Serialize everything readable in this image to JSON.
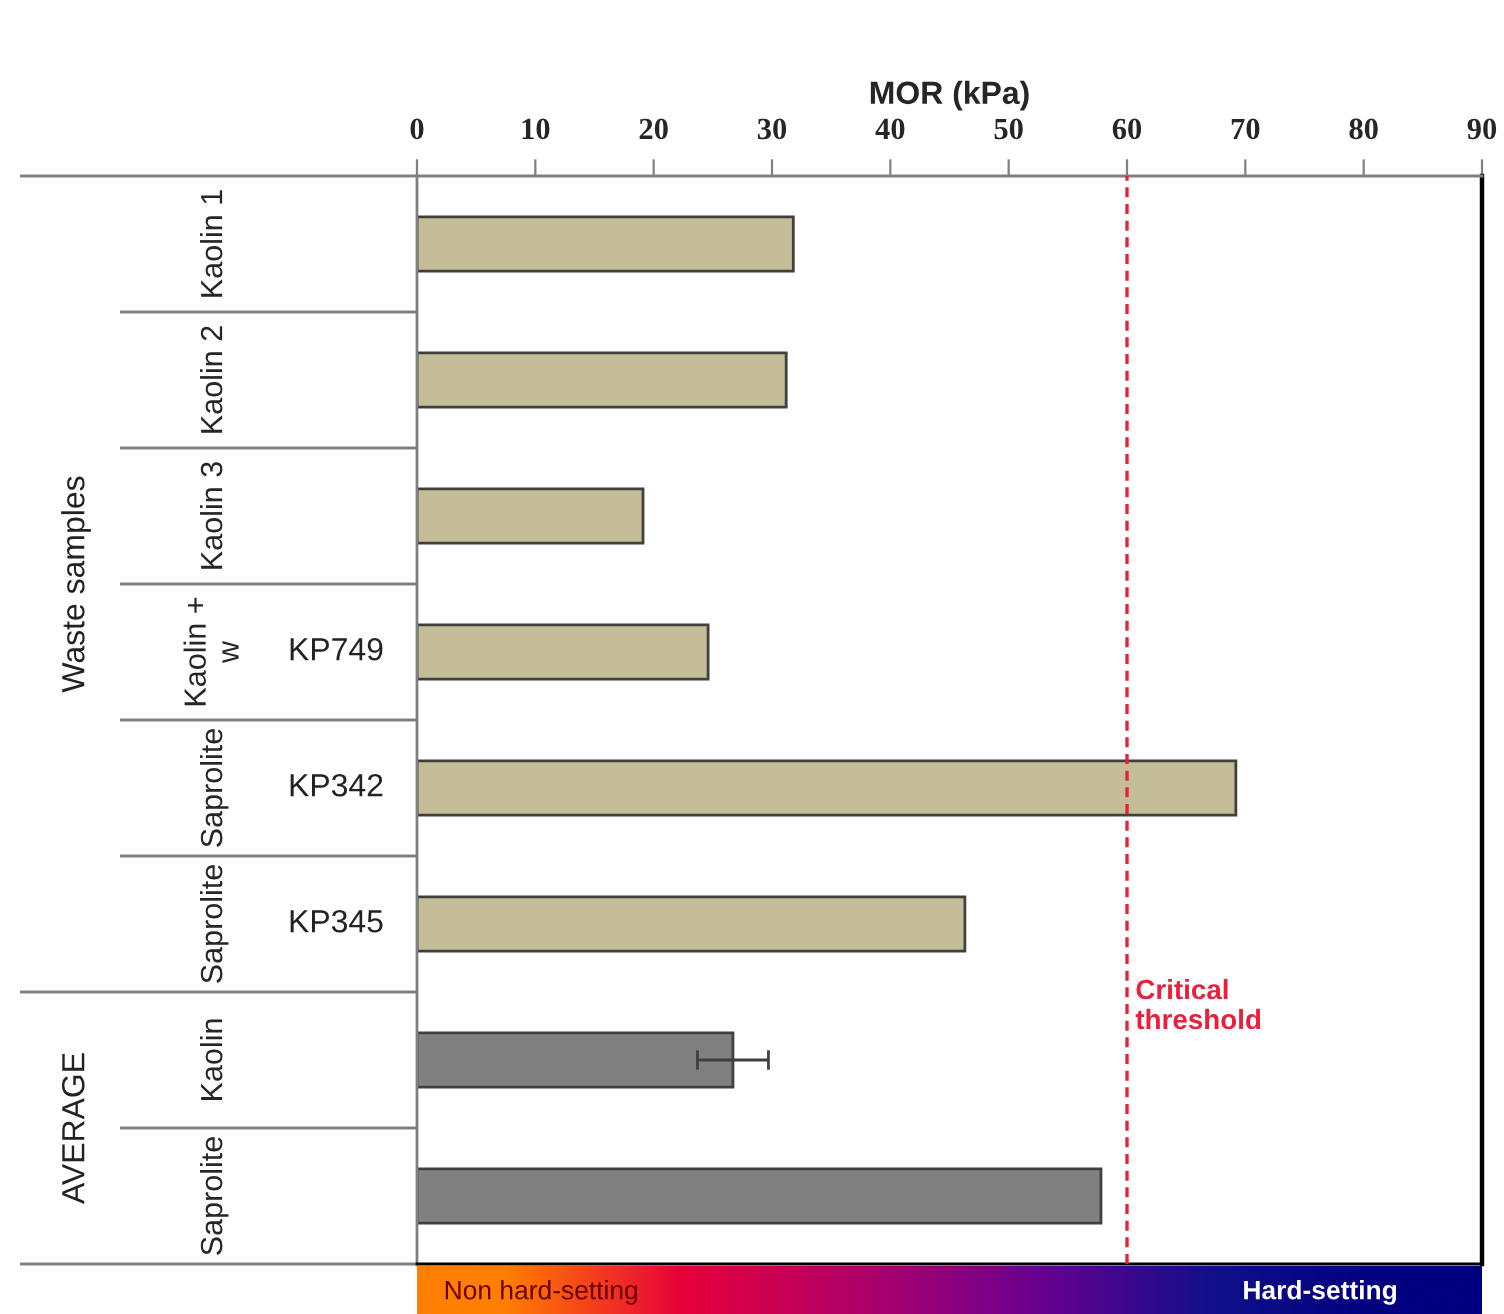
{
  "chart_data": {
    "type": "bar",
    "orientation": "horizontal",
    "xlabel": "MOR (kPa)",
    "categories": [
      "Kaolin 1",
      "Kaolin 2",
      "Kaolin 3",
      "Kaolin +\nw",
      "Saprolite",
      "Saprolite",
      "Kaolin",
      "Saprolite"
    ],
    "values": [
      31.8,
      31.2,
      19.1,
      24.6,
      69.2,
      46.3,
      26.7,
      57.8
    ],
    "colors": [
      "#c4bd97",
      "#c4bd97",
      "#c4bd97",
      "#c4bd97",
      "#c4bd97",
      "#c4bd97",
      "#808080",
      "#808080"
    ],
    "errors": [
      null,
      null,
      null,
      null,
      null,
      null,
      3,
      null
    ],
    "xlim": [
      0,
      90
    ],
    "xticks": [
      0,
      10,
      20,
      30,
      40,
      50,
      60,
      70,
      80,
      90
    ],
    "ref_lines": [
      {
        "axis": "x",
        "value": 60,
        "label": "Critical\nthreshold",
        "color": "#e8203c",
        "line_style": "dashed"
      }
    ],
    "annotations": [
      "Waste samples",
      "AVERAGE",
      "KP749",
      "KP342",
      "KP345",
      "Non hard-setting",
      "Hard-setting"
    ]
  }
}
